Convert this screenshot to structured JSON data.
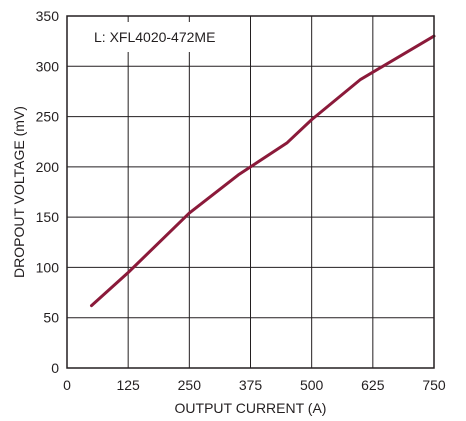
{
  "chart_data": {
    "type": "line",
    "xlabel": "OUTPUT CURRENT (A)",
    "ylabel": "DROPOUT VOLTAGE (mV)",
    "xlim": [
      0,
      750
    ],
    "ylim": [
      0,
      350
    ],
    "xticks": [
      0,
      125,
      250,
      375,
      500,
      625,
      750
    ],
    "yticks": [
      0,
      50,
      100,
      150,
      200,
      250,
      300,
      350
    ],
    "grid": true,
    "annotation": "L: XFL4020-472ME",
    "series": [
      {
        "color": "#8b1a3a",
        "x": [
          50,
          125,
          250,
          350,
          375,
          450,
          500,
          600,
          750
        ],
        "y": [
          62,
          95,
          154,
          192,
          200,
          224,
          247,
          287,
          330
        ]
      }
    ]
  }
}
